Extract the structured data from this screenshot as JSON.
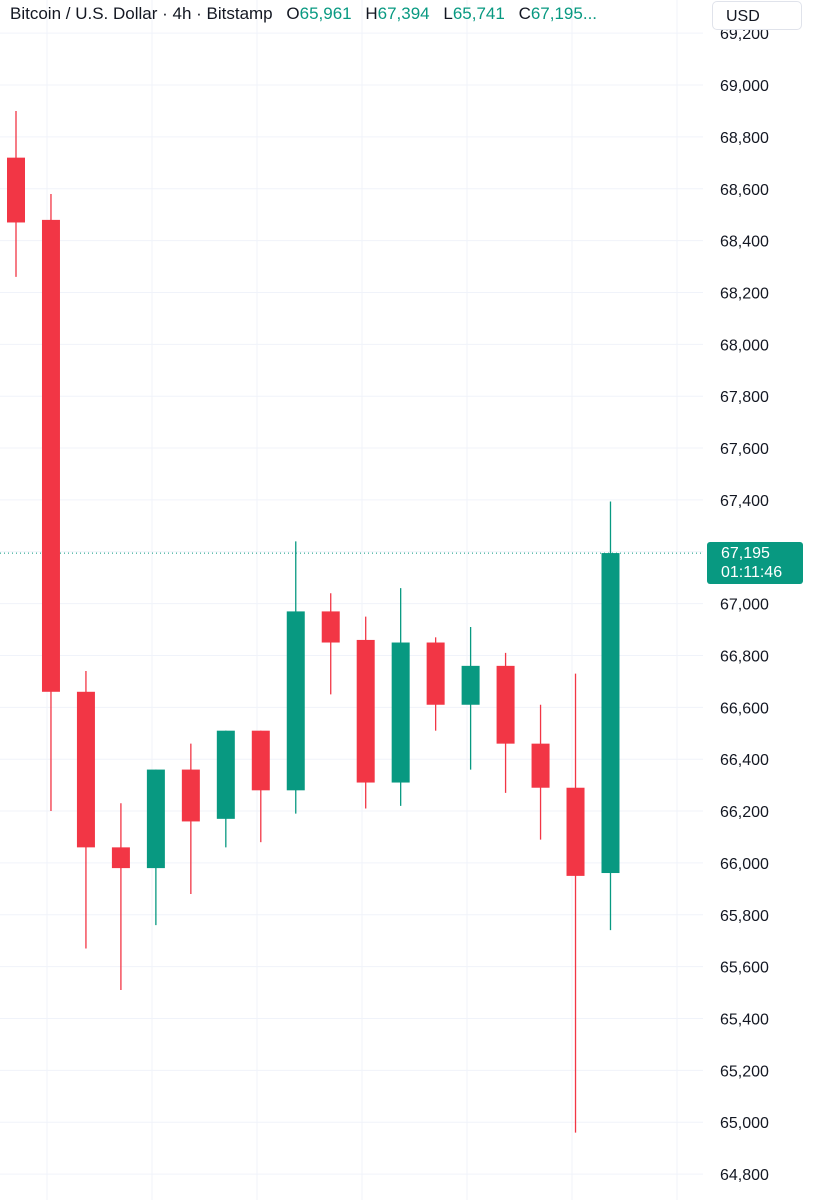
{
  "legend": {
    "symbol": "Bitcoin / U.S. Dollar · 4h · Bitstamp",
    "open_key": "O",
    "open_value": "65,961",
    "high_key": "H",
    "high_value": "67,394",
    "low_key": "L",
    "low_value": "65,741",
    "close_key": "C",
    "close_value": "67,195..."
  },
  "currency_button": {
    "label": "USD"
  },
  "price_tag": {
    "price": "67,195",
    "countdown": "01:11:46"
  },
  "colors": {
    "up": "#089981",
    "down": "#F23645",
    "grid": "#F0F3FA",
    "text": "#131722"
  },
  "chart_data": {
    "type": "candlestick",
    "y_axis_ticks": [
      {
        "value": 64800,
        "label": "64,800"
      },
      {
        "value": 65000,
        "label": "65,000"
      },
      {
        "value": 65200,
        "label": "65,200"
      },
      {
        "value": 65400,
        "label": "65,400"
      },
      {
        "value": 65600,
        "label": "65,600"
      },
      {
        "value": 65800,
        "label": "65,800"
      },
      {
        "value": 66000,
        "label": "66,000"
      },
      {
        "value": 66200,
        "label": "66,200"
      },
      {
        "value": 66400,
        "label": "66,400"
      },
      {
        "value": 66600,
        "label": "66,600"
      },
      {
        "value": 66800,
        "label": "66,800"
      },
      {
        "value": 67000,
        "label": "67,000"
      },
      {
        "value": 67200,
        "label": "67,200"
      },
      {
        "value": 67400,
        "label": "67,400"
      },
      {
        "value": 67600,
        "label": "67,600"
      },
      {
        "value": 67800,
        "label": "67,800"
      },
      {
        "value": 68000,
        "label": "68,000"
      },
      {
        "value": 68200,
        "label": "68,200"
      },
      {
        "value": 68400,
        "label": "68,400"
      },
      {
        "value": 68600,
        "label": "68,600"
      },
      {
        "value": 68800,
        "label": "68,800"
      },
      {
        "value": 69000,
        "label": "69,000"
      },
      {
        "value": 69200,
        "label": "69,200"
      }
    ],
    "ylim": [
      64700,
      69220
    ],
    "current_price": 67195,
    "candles": [
      {
        "open": 68720,
        "high": 68900,
        "low": 68260,
        "close": 68470
      },
      {
        "open": 68480,
        "high": 68580,
        "low": 66200,
        "close": 66660
      },
      {
        "open": 66660,
        "high": 66740,
        "low": 65670,
        "close": 66060
      },
      {
        "open": 66060,
        "high": 66230,
        "low": 65510,
        "close": 65980
      },
      {
        "open": 65980,
        "high": 66360,
        "low": 65760,
        "close": 66360
      },
      {
        "open": 66360,
        "high": 66460,
        "low": 65880,
        "close": 66160
      },
      {
        "open": 66170,
        "high": 66510,
        "low": 66060,
        "close": 66510
      },
      {
        "open": 66510,
        "high": 66510,
        "low": 66080,
        "close": 66280
      },
      {
        "open": 66280,
        "high": 67240,
        "low": 66190,
        "close": 66970
      },
      {
        "open": 66970,
        "high": 67040,
        "low": 66650,
        "close": 66850
      },
      {
        "open": 66860,
        "high": 66950,
        "low": 66210,
        "close": 66310
      },
      {
        "open": 66310,
        "high": 67060,
        "low": 66220,
        "close": 66850
      },
      {
        "open": 66850,
        "high": 66870,
        "low": 66510,
        "close": 66610
      },
      {
        "open": 66610,
        "high": 66910,
        "low": 66360,
        "close": 66760
      },
      {
        "open": 66760,
        "high": 66810,
        "low": 66270,
        "close": 66460
      },
      {
        "open": 66460,
        "high": 66610,
        "low": 66090,
        "close": 66290
      },
      {
        "open": 66290,
        "high": 66730,
        "low": 64960,
        "close": 65950
      },
      {
        "open": 65961,
        "high": 67394,
        "low": 65741,
        "close": 67195
      }
    ]
  }
}
